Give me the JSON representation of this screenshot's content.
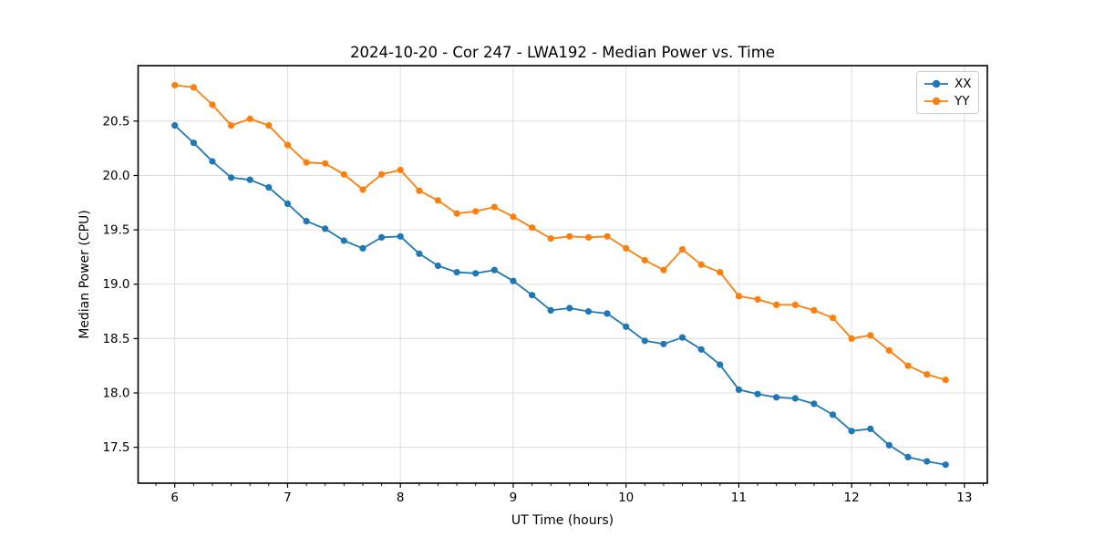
{
  "chart_data": {
    "type": "line",
    "title": "2024-10-20 - Cor 247 - LWA192 - Median Power vs. Time",
    "xlabel": "UT Time (hours)",
    "ylabel": "Median Power (CPU)",
    "xlim": [
      5.675,
      13.203
    ],
    "ylim": [
      17.17,
      21.01
    ],
    "grid": "major-both",
    "grid_color": "#dddddd",
    "legend_position": "upper-right",
    "x_ticks": {
      "values": [
        6,
        7,
        8,
        9,
        10,
        11,
        12,
        13
      ],
      "labels": [
        "6",
        "7",
        "8",
        "9",
        "10",
        "11",
        "12",
        "13"
      ]
    },
    "x_minor_tick_step": 0.16667,
    "y_ticks": {
      "values": [
        17.5,
        18.0,
        18.5,
        19.0,
        19.5,
        20.0,
        20.5
      ],
      "labels": [
        "17.5",
        "18.0",
        "18.5",
        "19.0",
        "19.5",
        "20.0",
        "20.5"
      ]
    },
    "x": [
      6.0,
      6.167,
      6.333,
      6.5,
      6.667,
      6.833,
      7.0,
      7.167,
      7.333,
      7.5,
      7.667,
      7.833,
      8.0,
      8.167,
      8.333,
      8.5,
      8.667,
      8.833,
      9.0,
      9.167,
      9.333,
      9.5,
      9.667,
      9.833,
      10.0,
      10.167,
      10.333,
      10.5,
      10.667,
      10.833,
      11.0,
      11.167,
      11.333,
      11.5,
      11.667,
      11.833,
      12.0,
      12.167,
      12.333,
      12.5,
      12.667,
      12.833
    ],
    "series": [
      {
        "name": "XX",
        "color": "#1f77b4",
        "values": [
          20.46,
          20.3,
          20.13,
          19.98,
          19.96,
          19.89,
          19.74,
          19.58,
          19.51,
          19.4,
          19.33,
          19.43,
          19.44,
          19.28,
          19.17,
          19.11,
          19.1,
          19.13,
          19.03,
          18.9,
          18.76,
          18.78,
          18.75,
          18.73,
          18.61,
          18.48,
          18.45,
          18.51,
          18.4,
          18.26,
          18.03,
          17.99,
          17.96,
          17.95,
          17.9,
          17.8,
          17.65,
          17.67,
          17.52,
          17.41,
          17.37,
          17.34
        ]
      },
      {
        "name": "YY",
        "color": "#ff7f0e",
        "values": [
          20.83,
          20.81,
          20.65,
          20.46,
          20.52,
          20.46,
          20.28,
          20.12,
          20.11,
          20.01,
          19.87,
          20.01,
          20.05,
          19.86,
          19.77,
          19.65,
          19.67,
          19.71,
          19.62,
          19.52,
          19.42,
          19.44,
          19.43,
          19.44,
          19.33,
          19.22,
          19.13,
          19.32,
          19.18,
          19.11,
          18.89,
          18.86,
          18.81,
          18.81,
          18.76,
          18.69,
          18.5,
          18.53,
          18.39,
          18.25,
          18.17,
          18.12
        ]
      }
    ]
  }
}
